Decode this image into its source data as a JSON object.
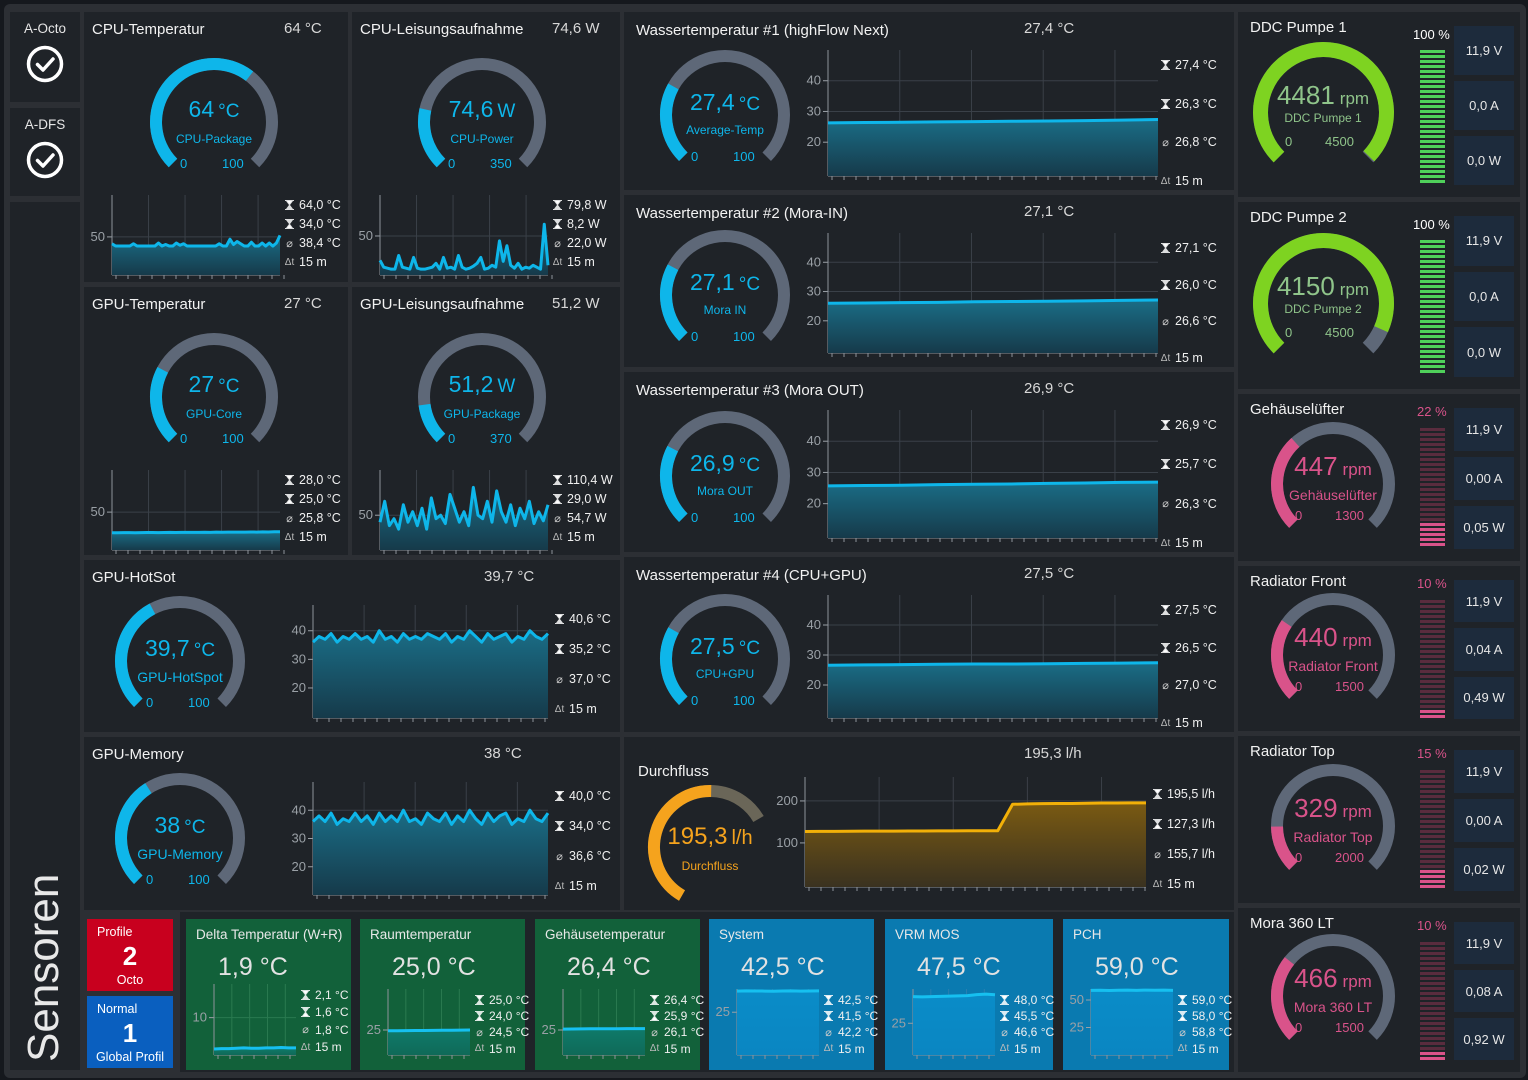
{
  "colors": {
    "blue": "#0eb6ea",
    "track": "#5e6878",
    "green": "#7ed321",
    "pink": "#d9538a",
    "orange": "#f5a31d",
    "green_tile": "#12613a",
    "blue_tile": "#0a7ab0"
  },
  "sidebar": {
    "items": [
      {
        "label": "A-Octo",
        "icon": "check-circle-icon"
      },
      {
        "label": "A-DFS",
        "icon": "check-circle-icon"
      }
    ],
    "section_label": "Sensoren"
  },
  "gauge_panels": [
    {
      "title": "CPU-Temperatur",
      "header_value": "64 °C",
      "value": "64",
      "unit": "°C",
      "label": "CPU-Package",
      "min": "0",
      "max": "100",
      "y_ticks": [
        "50"
      ],
      "y_range": [
        0,
        105
      ],
      "stats": {
        "max": "64,0 °C",
        "min": "34,0 °C",
        "avg": "38,4 °C",
        "duration": "15 m"
      },
      "history": [
        41,
        38,
        38,
        38,
        38,
        38,
        41,
        38,
        38,
        38,
        38,
        38,
        38,
        42,
        38,
        40,
        38,
        38,
        42,
        39,
        41,
        38,
        38,
        38,
        38,
        38,
        38,
        38,
        38,
        38,
        41,
        38,
        38,
        47,
        40,
        44,
        41,
        38,
        38,
        43,
        38,
        38,
        42,
        38,
        42,
        38,
        42,
        52
      ]
    },
    {
      "title": "CPU-Leisungsaufnahme",
      "header_value": "74,6 W",
      "value": "74,6",
      "unit": "W",
      "label": "CPU-Power",
      "min": "0",
      "max": "350",
      "y_ticks": [
        "50"
      ],
      "y_range": [
        10,
        92
      ],
      "stats": {
        "max": "79,8 W",
        "min": "8,2 W",
        "avg": "22,0 W",
        "duration": "15 m"
      },
      "history": [
        25,
        18,
        17,
        16,
        16,
        30,
        18,
        17,
        16,
        28,
        17,
        16,
        16,
        17,
        18,
        22,
        16,
        28,
        17,
        18,
        16,
        30,
        18,
        16,
        17,
        19,
        22,
        28,
        16,
        17,
        20,
        18,
        45,
        24,
        40,
        20,
        17,
        22,
        16,
        18,
        17,
        20,
        18,
        16,
        62,
        20
      ]
    },
    {
      "title": "GPU-Temperatur",
      "header_value": "27 °C",
      "value": "27",
      "unit": "°C",
      "label": "GPU-Core",
      "min": "0",
      "max": "100",
      "y_ticks": [
        "50"
      ],
      "y_range": [
        5,
        100
      ],
      "stats": {
        "max": "28,0 °C",
        "min": "25,0 °C",
        "avg": "25,8 °C",
        "duration": "15 m"
      },
      "history": [
        25.5,
        25.5,
        25.6,
        25.6,
        25.5,
        25.7,
        25.8,
        25.8,
        25.7,
        25.8,
        25.9,
        25.8,
        25.9,
        26,
        25.9,
        26,
        26.1,
        26,
        26.2,
        26.1,
        26.2,
        26.3,
        26.2,
        26.3,
        26.4,
        26.3,
        26.5,
        26.4,
        26.6,
        26.6
      ]
    },
    {
      "title": "GPU-Leisungsaufnahme",
      "header_value": "51,2 W",
      "value": "51,2",
      "unit": "W",
      "label": "GPU-Package",
      "min": "0",
      "max": "370",
      "y_ticks": [
        "50"
      ],
      "y_range": [
        0,
        115
      ],
      "stats": {
        "max": "110,4 W",
        "min": "29,0 W",
        "avg": "54,7 W",
        "duration": "15 m"
      },
      "history": [
        40,
        70,
        35,
        45,
        30,
        65,
        40,
        55,
        35,
        60,
        30,
        75,
        45,
        50,
        38,
        80,
        60,
        40,
        55,
        35,
        90,
        50,
        45,
        70,
        40,
        85,
        55,
        40,
        65,
        35,
        60,
        45,
        70,
        38,
        55,
        42,
        65
      ]
    },
    {
      "title": "GPU-HotSot",
      "header_value": "39,7 °C",
      "value": "39,7",
      "unit": "°C",
      "label": "GPU-HotSpot",
      "min": "0",
      "max": "100",
      "y_ticks": [
        "40",
        "30",
        "20"
      ],
      "y_range": [
        9.5,
        49
      ],
      "stats": {
        "max": "40,6 °C",
        "min": "35,2 °C",
        "avg": "37,0 °C",
        "duration": "15 m"
      },
      "history": [
        36,
        38,
        37,
        39,
        36,
        38,
        37,
        39,
        37,
        38,
        36,
        40,
        37,
        38,
        36,
        39,
        37,
        38,
        37,
        39,
        38,
        37,
        39,
        36,
        38,
        37,
        40,
        38,
        36,
        39,
        37,
        38,
        39,
        36,
        38,
        37,
        40,
        38,
        37,
        39
      ]
    },
    {
      "title": "GPU-Memory",
      "header_value": "38 °C",
      "value": "38",
      "unit": "°C",
      "label": "GPU-Memory",
      "min": "0",
      "max": "100",
      "y_ticks": [
        "40",
        "30",
        "20"
      ],
      "y_range": [
        10,
        50
      ],
      "stats": {
        "max": "40,0 °C",
        "min": "34,0 °C",
        "avg": "36,6 °C",
        "duration": "15 m"
      },
      "history": [
        36,
        38,
        36,
        39,
        35,
        37,
        36,
        39,
        36,
        38,
        35,
        39,
        36,
        38,
        36,
        40,
        36,
        37,
        35,
        39,
        37,
        36,
        39,
        35,
        38,
        36,
        40,
        37,
        35,
        39,
        36,
        38,
        39,
        35,
        37,
        36,
        40,
        37,
        36,
        39
      ]
    },
    {
      "title": "Wassertemperatur #1 (highFlow Next)",
      "header_value": "27,4 °C",
      "value": "27,4",
      "unit": "°C",
      "label": "Average-Temp",
      "min": "0",
      "max": "100",
      "y_ticks": [
        "40",
        "30",
        "20"
      ],
      "y_range": [
        9,
        50
      ],
      "stats": {
        "max": "27,4 °C",
        "min": "26,3 °C",
        "avg": "26,8 °C",
        "duration": "15 m"
      },
      "history": [
        26.3,
        26.4,
        26.5,
        26.6,
        26.7,
        26.8,
        26.9,
        27.0,
        27.2,
        27.4
      ]
    },
    {
      "title": "Wassertemperatur #2 (Mora-IN)",
      "header_value": "27,1 °C",
      "value": "27,1",
      "unit": "°C",
      "label": "Mora IN",
      "min": "0",
      "max": "100",
      "y_ticks": [
        "40",
        "30",
        "20"
      ],
      "y_range": [
        9,
        50
      ],
      "stats": {
        "max": "27,1 °C",
        "min": "26,0 °C",
        "avg": "26,6 °C",
        "duration": "15 m"
      },
      "history": [
        26.0,
        26.1,
        26.2,
        26.3,
        26.5,
        26.6,
        26.7,
        26.8,
        27.0,
        27.1
      ]
    },
    {
      "title": "Wassertemperatur #3 (Mora OUT)",
      "header_value": "26,9 °C",
      "value": "26,9",
      "unit": "°C",
      "label": "Mora OUT",
      "min": "0",
      "max": "100",
      "y_ticks": [
        "40",
        "30",
        "20"
      ],
      "y_range": [
        9,
        50
      ],
      "stats": {
        "max": "26,9 °C",
        "min": "25,7 °C",
        "avg": "26,3 °C",
        "duration": "15 m"
      },
      "history": [
        25.7,
        25.8,
        25.9,
        26.1,
        26.2,
        26.3,
        26.5,
        26.6,
        26.8,
        26.9
      ]
    },
    {
      "title": "Wassertemperatur #4 (CPU+GPU)",
      "header_value": "27,5 °C",
      "value": "27,5",
      "unit": "°C",
      "label": "CPU+GPU",
      "min": "0",
      "max": "100",
      "y_ticks": [
        "40",
        "30",
        "20"
      ],
      "y_range": [
        9,
        50
      ],
      "stats": {
        "max": "27,5 °C",
        "min": "26,5 °C",
        "avg": "27,0 °C",
        "duration": "15 m"
      },
      "history": [
        26.6,
        26.7,
        26.8,
        26.9,
        27.0,
        27.0,
        27.1,
        27.2,
        27.3,
        27.4
      ]
    }
  ],
  "flow_panel": {
    "title": "Durchfluss",
    "header_value": "195,3 l/h",
    "value": "195,3",
    "unit": "l/h",
    "label": "Durchfluss",
    "gauge_level": 0.72,
    "y_ticks": [
      "200",
      "100"
    ],
    "y_range": [
      -5,
      257
    ],
    "stats": {
      "max": "195,5 l/h",
      "min": "127,3 l/h",
      "avg": "155,7 l/h",
      "duration": "15 m"
    },
    "history": [
      127.3,
      127.5,
      127.6,
      127.8,
      128,
      128,
      128.2,
      128.3,
      128.5,
      128.6,
      128.8,
      129,
      129,
      129,
      192,
      193,
      193.5,
      194,
      194,
      194.5,
      195,
      195,
      195.3,
      195.5
    ]
  },
  "fan_panels": [
    {
      "title": "DDC Pumpe 1",
      "value": "4481",
      "unit": "rpm",
      "label": "DDC Pumpe 1",
      "min": "0",
      "max": "4500",
      "percent": "100 %",
      "level": 1.0,
      "voltage": "11,9 V",
      "current": "0,0 A",
      "power": "0,0 W",
      "color": "#7ed321"
    },
    {
      "title": "DDC Pumpe 2",
      "value": "4150",
      "unit": "rpm",
      "label": "DDC Pumpe 2",
      "min": "0",
      "max": "4500",
      "percent": "100 %",
      "level": 1.0,
      "voltage": "11,9 V",
      "current": "0,0 A",
      "power": "0,0 W",
      "color": "#7ed321"
    },
    {
      "title": "Gehäuselüfter",
      "value": "447",
      "unit": "rpm",
      "label": "Gehäuselüfter",
      "min": "0",
      "max": "1300",
      "percent": "22 %",
      "level": 0.22,
      "voltage": "11,9 V",
      "current": "0,00 A",
      "power": "0,05 W",
      "color": "#d9538a"
    },
    {
      "title": "Radiator Front",
      "value": "440",
      "unit": "rpm",
      "label": "Radiator Front",
      "min": "0",
      "max": "1500",
      "percent": "10 %",
      "level": 0.1,
      "voltage": "11,9 V",
      "current": "0,04 A",
      "power": "0,49 W",
      "color": "#d9538a"
    },
    {
      "title": "Radiator Top",
      "value": "329",
      "unit": "rpm",
      "label": "Radiator Top",
      "min": "0",
      "max": "2000",
      "percent": "15 %",
      "level": 0.15,
      "voltage": "11,9 V",
      "current": "0,00 A",
      "power": "0,02 W",
      "color": "#d9538a"
    },
    {
      "title": "Mora 360 LT",
      "value": "466",
      "unit": "rpm",
      "label": "Mora 360 LT",
      "min": "0",
      "max": "1500",
      "percent": "10 %",
      "level": 0.1,
      "voltage": "11,9 V",
      "current": "0,08 A",
      "power": "0,92 W",
      "color": "#d9538a"
    }
  ],
  "profiles": [
    {
      "title": "Profile",
      "number": "2",
      "subtitle": "Octo",
      "color": "#c8001e"
    },
    {
      "title": "Normal",
      "number": "1",
      "subtitle": "Global Profil",
      "color": "#0a5fbf"
    }
  ],
  "tiles": [
    {
      "title": "Delta Temperatur (W+R)",
      "value": "1,9 °C",
      "color": "#12613a",
      "y_ticks": [
        "10"
      ],
      "y_range": [
        0,
        19
      ],
      "stats": {
        "max": "2,1 °C",
        "min": "1,6 °C",
        "avg": "1,8 °C",
        "duration": "15 m"
      },
      "history": [
        1.6,
        1.7,
        1.7,
        1.8,
        1.9,
        1.8,
        1.8,
        1.9,
        1.9,
        2.0,
        1.9,
        1.9
      ]
    },
    {
      "title": "Raumtemperatur",
      "value": "25,0 °C",
      "color": "#12613a",
      "y_ticks": [
        "25"
      ],
      "y_range": [
        0,
        66
      ],
      "stats": {
        "max": "25,0 °C",
        "min": "24,0 °C",
        "avg": "24,5 °C",
        "duration": "15 m"
      },
      "history": [
        24.2,
        24.3,
        24.4,
        24.5,
        24.5,
        24.6,
        24.7,
        24.8,
        24.9,
        25.0
      ]
    },
    {
      "title": "Gehäusetemperatur",
      "value": "26,4 °C",
      "color": "#12613a",
      "y_ticks": [
        "25"
      ],
      "y_range": [
        0,
        66
      ],
      "stats": {
        "max": "26,4 °C",
        "min": "25,9 °C",
        "avg": "26,1 °C",
        "duration": "15 m"
      },
      "history": [
        25.9,
        26.0,
        26.1,
        26.2,
        26.2,
        26.3,
        26.3,
        26.4,
        26.4,
        26.4
      ]
    },
    {
      "title": "System",
      "value": "42,5 °C",
      "color": "#0a7ab0",
      "y_ticks": [
        "25"
      ],
      "y_range": [
        -10,
        44
      ],
      "stats": {
        "max": "42,5 °C",
        "min": "41,5 °C",
        "avg": "42,2 °C",
        "duration": "15 m"
      },
      "history": [
        42.3,
        42.5,
        42.4,
        42.3,
        42.2,
        42.4,
        42.5,
        42.3,
        42.4,
        42.5
      ]
    },
    {
      "title": "VRM MOS",
      "value": "47,5 °C",
      "color": "#0a7ab0",
      "y_ticks": [
        "25"
      ],
      "y_range": [
        0,
        52
      ],
      "stats": {
        "max": "48,0 °C",
        "min": "45,5 °C",
        "avg": "46,6 °C",
        "duration": "15 m"
      },
      "history": [
        46,
        45.8,
        46,
        46.2,
        46.4,
        46.6,
        46.8,
        47.6,
        48,
        47.5
      ]
    },
    {
      "title": "PCH",
      "value": "59,0 °C",
      "color": "#0a7ab0",
      "y_ticks": [
        "50",
        "25"
      ],
      "y_range": [
        0,
        60
      ],
      "stats": {
        "max": "59,0 °C",
        "min": "58,0 °C",
        "avg": "58,8 °C",
        "duration": "15 m"
      },
      "history": [
        58.8,
        58.9,
        58.6,
        58.9,
        59,
        58.8,
        59,
        58.9,
        59,
        58.8
      ]
    }
  ]
}
